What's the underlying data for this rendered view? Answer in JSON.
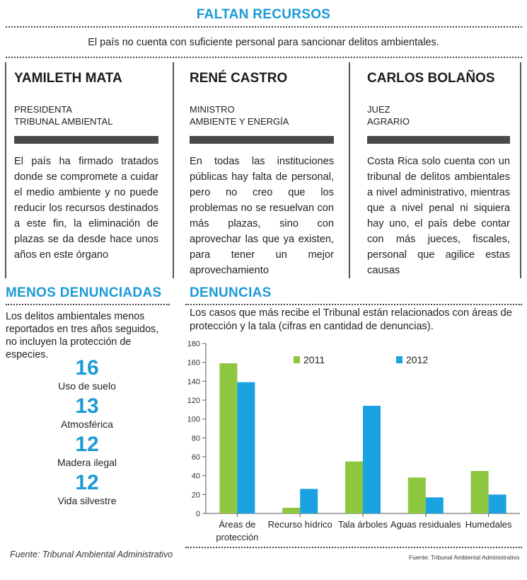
{
  "header": {
    "title": "FALTAN RECURSOS",
    "subtitle": "El país no cuenta con suficiente personal para sancionar delitos ambientales."
  },
  "columns": [
    {
      "name": "YAMILETH MATA",
      "role_line1": "PRESIDENTA",
      "role_line2": "TRIBUNAL AMBIENTAL",
      "quote": "El país ha firmado tratados donde se compromete a cuidar el medio ambiente y no puede reducir los recursos destinados a este fin, la eliminación de plazas se da desde hace unos años en este órgano"
    },
    {
      "name": "RENÉ CASTRO",
      "role_line1": "MINISTRO",
      "role_line2": "AMBIENTE Y ENERGÍA",
      "quote": "En todas las instituciones públicas hay falta de personal, pero no creo que los problemas no se resuelvan con más plazas, sino con aprovechar las que ya existen, para tener un mejor aprovechamiento"
    },
    {
      "name": "CARLOS BOLAÑOS",
      "role_line1": "JUEZ",
      "role_line2": "AGRARIO",
      "quote": "Costa Rica solo cuenta con un tribunal de delitos ambientales a nivel administrativo, mientras que a nivel penal ni siquiera hay uno, el país debe contar con más jueces, fiscales, personal que agilice estas causas"
    }
  ],
  "menos": {
    "title": "MENOS DENUNCIADAS",
    "intro": "Los delitos ambientales menos reportados en tres años seguidos, no incluyen la protección de especies.",
    "stats": [
      {
        "value": "16",
        "label": "Uso de suelo"
      },
      {
        "value": "13",
        "label": "Atmosférica"
      },
      {
        "value": "12",
        "label": "Madera ilegal"
      },
      {
        "value": "12",
        "label": "Vida silvestre"
      }
    ]
  },
  "denuncias": {
    "title": "DENUNCIAS",
    "intro": "Los casos que más recibe el Tribunal están relacionados con áreas de protección y la tala (cifras en cantidad de denuncias)."
  },
  "footer": {
    "source_left": "Fuente: Tribunal Ambiental Administrativo",
    "source_right": "Fuente: Tribunal Ambiental Administrativo"
  },
  "chart_data": {
    "type": "bar",
    "categories": [
      "Áreas de protección",
      "Recurso hídrico",
      "Tala árboles",
      "Aguas residuales",
      "Humedales"
    ],
    "category_lines": [
      [
        "Áreas de",
        "protección"
      ],
      [
        "Recurso hídrico"
      ],
      [
        "Tala árboles"
      ],
      [
        "Aguas residuales"
      ],
      [
        "Humedales"
      ]
    ],
    "series": [
      {
        "name": "2011",
        "color": "#8dc63f",
        "values": [
          159,
          6,
          55,
          38,
          45
        ]
      },
      {
        "name": "2012",
        "color": "#1aa3e0",
        "values": [
          139,
          26,
          114,
          17,
          20
        ]
      }
    ],
    "ylim": [
      0,
      180
    ],
    "yticks": [
      0,
      20,
      40,
      60,
      80,
      100,
      120,
      140,
      160,
      180
    ],
    "grid": false,
    "legend_position": "top-right"
  }
}
